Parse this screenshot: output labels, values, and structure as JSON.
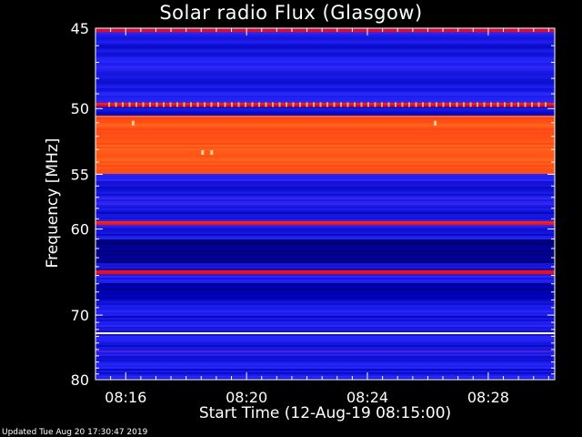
{
  "chart_data": {
    "type": "heatmap",
    "title": "Solar radio Flux (Glasgow)",
    "xlabel": "Start Time (12-Aug-19 08:15:00)",
    "ylabel": "Frequency [MHz]",
    "x_ticks": [
      "08:16",
      "08:20",
      "08:24",
      "08:28"
    ],
    "x_tick_minutes": [
      16,
      20,
      24,
      28
    ],
    "xlim_minutes": [
      15.0,
      30.2
    ],
    "y_ticks": [
      45,
      50,
      55,
      60,
      70,
      80
    ],
    "ylim": [
      45,
      80
    ],
    "yscale": "reciprocal",
    "colormap": [
      "#000000",
      "#0000b4",
      "#2828ff",
      "#ff0000",
      "#ff8c28",
      "#ffffe6"
    ],
    "bands": [
      {
        "mhz": [
          45.0,
          45.2
        ],
        "level": 0.58
      },
      {
        "mhz": [
          49.55,
          49.85
        ],
        "level": 0.62
      },
      {
        "mhz": [
          50.5,
          54.9
        ],
        "level": 0.72
      },
      {
        "mhz": [
          59.3,
          59.6
        ],
        "level": 0.64
      },
      {
        "mhz": [
          64.4,
          64.9
        ],
        "level": 0.6
      },
      {
        "mhz": [
          72.4,
          72.8
        ],
        "level": 0.95
      },
      {
        "mhz": [
          61.0,
          63.5
        ],
        "level": 0.15
      },
      {
        "mhz": [
          66.0,
          68.0
        ],
        "level": 0.18
      }
    ]
  },
  "footer": {
    "updated": "Updated Tue Aug 20 17:30:47 2019"
  }
}
